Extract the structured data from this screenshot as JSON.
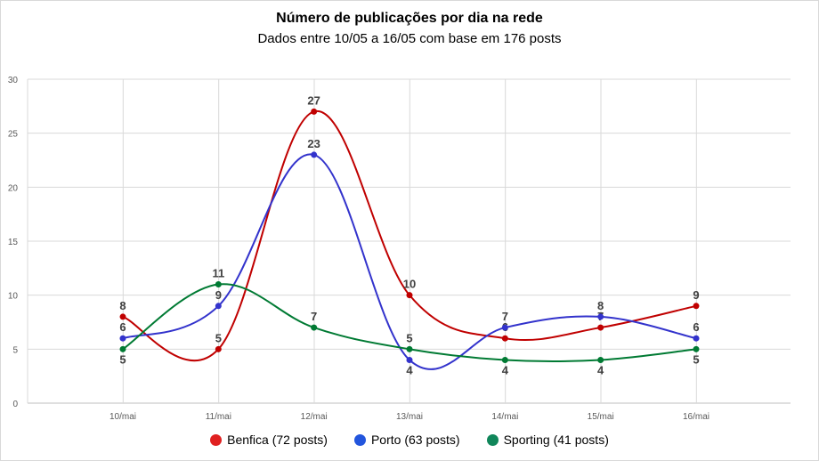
{
  "chart_data": {
    "type": "line",
    "title": "Número de publicações por dia na rede",
    "subtitle": "Dados entre 10/05 a 16/05 com base em 176 posts",
    "categories": [
      "10/mai",
      "11/mai",
      "12/mai",
      "13/mai",
      "14/mai",
      "15/mai",
      "16/mai"
    ],
    "ylim": [
      0,
      30
    ],
    "yticks": [
      0,
      5,
      10,
      15,
      20,
      25,
      30
    ],
    "grid": true,
    "legend_position": "bottom",
    "smooth": true,
    "series": [
      {
        "name": "Benfica (72 posts)",
        "color": "#c00000",
        "values": [
          8,
          5,
          27,
          10,
          6,
          7,
          9
        ],
        "label_pos": [
          "above",
          "above",
          "above",
          "above",
          "above",
          "above",
          "above"
        ]
      },
      {
        "name": "Porto (63 posts)",
        "color": "#3333cc",
        "values": [
          6,
          9,
          23,
          4,
          7,
          8,
          6
        ],
        "label_pos": [
          "above",
          "above",
          "above",
          "below",
          "above",
          "above",
          "above"
        ]
      },
      {
        "name": "Sporting (41 posts)",
        "color": "#007a33",
        "values": [
          5,
          11,
          7,
          5,
          4,
          4,
          5
        ],
        "label_pos": [
          "below",
          "above",
          "above",
          "above",
          "below",
          "below",
          "below"
        ]
      }
    ]
  },
  "legend_dot_colors": [
    "#e02020",
    "#2255dd",
    "#10865a"
  ]
}
